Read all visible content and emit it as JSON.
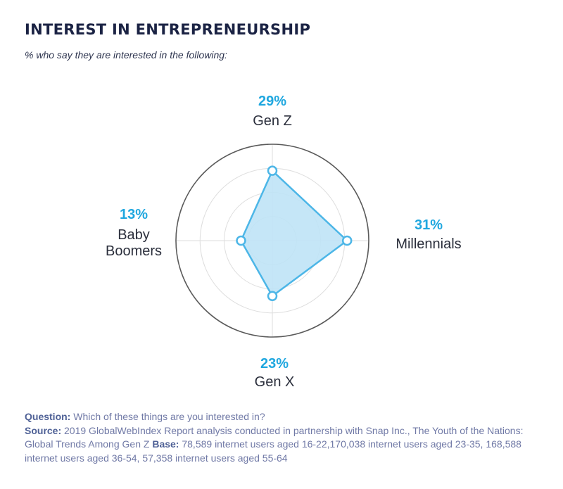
{
  "title": "INTEREST IN ENTREPRENEURSHIP",
  "subtitle": "% who say they are interested in the following:",
  "chart_data": {
    "type": "radar",
    "title": "INTEREST IN ENTREPRENEURSHIP",
    "rmax": 40,
    "rings": [
      10,
      20,
      30,
      40
    ],
    "axes": [
      {
        "name": "Gen Z",
        "value": 29,
        "label": "29%",
        "lines": [
          "Gen Z"
        ]
      },
      {
        "name": "Millennials",
        "value": 31,
        "label": "31%",
        "lines": [
          "Millennials"
        ]
      },
      {
        "name": "Gen X",
        "value": 23,
        "label": "23%",
        "lines": [
          "Gen X"
        ]
      },
      {
        "name": "Baby Boomers",
        "value": 13,
        "label": "13%",
        "lines": [
          "Baby",
          "Boomers"
        ]
      }
    ],
    "colors": {
      "fill": "#bfe3f6",
      "stroke": "#4cb6e7",
      "marker_fill": "#ffffff",
      "outer_ring": "#5a5a5a",
      "grid": "#dedede",
      "label_accent": "#1fa7df"
    }
  },
  "footer": {
    "question_label": "Question:",
    "question_text": "Which of these things are you interested in?",
    "source_label": "Source:",
    "source_text": "2019 GlobalWebIndex Report analysis conducted in partnership with Snap Inc., The Youth of the Nations: Global Trends Among Gen Z",
    "base_label": "Base:",
    "base_text": "78,589 internet users aged 16-22,170,038 internet users aged 23-35, 168,588 internet users aged 36-54, 57,358 internet users aged 55-64"
  }
}
